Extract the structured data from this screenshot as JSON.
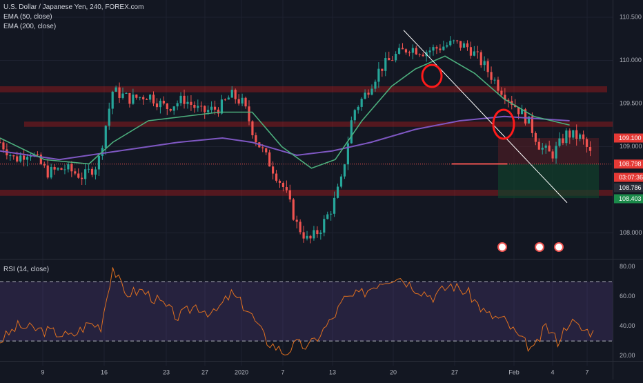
{
  "legend": {
    "symbol": "U.S. Dollar / Japanese Yen, 240, FOREX.com",
    "ema50": "EMA (50, close)",
    "ema200": "EMA (200, close)",
    "rsi": "RSI (14, close)"
  },
  "colors": {
    "background": "#131722",
    "up": "#26a69a",
    "down": "#ef5350",
    "ema50": "#4caf7d",
    "ema200": "#7e57c2",
    "rsi_line": "#e0701f",
    "rsi_band": "#7e57c2",
    "resistance_zone": "#b71c1c",
    "trendline": "#ffffff",
    "circle": "#ff1a1a",
    "axis_text": "#b2b5be"
  },
  "price_axis": {
    "ticks": [
      "110.500",
      "110.000",
      "109.500",
      "109.000",
      "108.000"
    ],
    "badges": [
      {
        "label": "109.100",
        "color": "#e53935"
      },
      {
        "label": "108.798",
        "color": "#e53935"
      },
      {
        "label": "03:07:36",
        "color": "#e53935"
      },
      {
        "label": "108.786",
        "color": "#2a2e39"
      },
      {
        "label": "108.403",
        "color": "#1b8a4a"
      }
    ]
  },
  "rsi_axis": {
    "ticks": [
      "80.00",
      "60.00",
      "40.00",
      "20.00"
    ]
  },
  "time_axis": {
    "labels": [
      "9",
      "16",
      "23",
      "27",
      "2020",
      "7",
      "13",
      "20",
      "27",
      "Feb",
      "4",
      "7"
    ]
  },
  "chart_data": [
    {
      "type": "candlestick",
      "title": "U.S. Dollar / Japanese Yen, 240, FOREX.com",
      "ylim": [
        107.7,
        110.7
      ],
      "x_labels": [
        "9",
        "16",
        "23",
        "27",
        "2020",
        "7",
        "13",
        "20",
        "27",
        "Feb",
        "4",
        "7"
      ],
      "series_close_path": [
        [
          0,
          109.05
        ],
        [
          5,
          108.85
        ],
        [
          10,
          108.95
        ],
        [
          16,
          108.7
        ],
        [
          22,
          108.75
        ],
        [
          28,
          108.65
        ],
        [
          33,
          108.8
        ],
        [
          38,
          109.65
        ],
        [
          44,
          109.55
        ],
        [
          50,
          109.6
        ],
        [
          56,
          109.45
        ],
        [
          62,
          109.55
        ],
        [
          68,
          109.4
        ],
        [
          74,
          109.45
        ],
        [
          78,
          109.6
        ],
        [
          82,
          109.5
        ],
        [
          86,
          109.1
        ],
        [
          91,
          108.8
        ],
        [
          96,
          108.5
        ],
        [
          100,
          108.1
        ],
        [
          104,
          107.9
        ],
        [
          108,
          108.05
        ],
        [
          112,
          108.3
        ],
        [
          115,
          108.6
        ],
        [
          119,
          109.4
        ],
        [
          123,
          109.6
        ],
        [
          128,
          109.9
        ],
        [
          133,
          110.05
        ],
        [
          138,
          110.15
        ],
        [
          143,
          110.1
        ],
        [
          148,
          110.15
        ],
        [
          153,
          110.2
        ],
        [
          158,
          110.15
        ],
        [
          163,
          109.95
        ],
        [
          168,
          109.7
        ],
        [
          173,
          109.5
        ],
        [
          178,
          109.3
        ],
        [
          182,
          109.0
        ],
        [
          186,
          108.9
        ],
        [
          191,
          109.15
        ],
        [
          196,
          109.1
        ],
        [
          200,
          108.85
        ]
      ],
      "ema50": [
        [
          0,
          109.1
        ],
        [
          15,
          108.85
        ],
        [
          30,
          108.8
        ],
        [
          38,
          109.05
        ],
        [
          50,
          109.3
        ],
        [
          62,
          109.35
        ],
        [
          74,
          109.4
        ],
        [
          85,
          109.4
        ],
        [
          95,
          109.0
        ],
        [
          105,
          108.75
        ],
        [
          113,
          108.85
        ],
        [
          122,
          109.3
        ],
        [
          132,
          109.7
        ],
        [
          140,
          109.9
        ],
        [
          150,
          110.05
        ],
        [
          160,
          109.85
        ],
        [
          170,
          109.55
        ],
        [
          180,
          109.35
        ],
        [
          192,
          109.25
        ]
      ],
      "ema200": [
        [
          0,
          108.95
        ],
        [
          20,
          108.85
        ],
        [
          40,
          108.95
        ],
        [
          60,
          109.05
        ],
        [
          75,
          109.1
        ],
        [
          85,
          109.05
        ],
        [
          100,
          108.9
        ],
        [
          112,
          108.95
        ],
        [
          125,
          109.05
        ],
        [
          140,
          109.2
        ],
        [
          155,
          109.3
        ],
        [
          170,
          109.35
        ],
        [
          192,
          109.3
        ]
      ],
      "levels": {
        "resistance_upper": [
          109.63,
          109.7
        ],
        "resistance_mid": [
          109.23,
          109.29
        ],
        "support_lower": [
          108.43,
          108.5
        ],
        "current_price": 108.798,
        "short_stop": 109.1,
        "short_target": 108.403
      }
    },
    {
      "type": "line",
      "title": "RSI (14, close)",
      "ylim": [
        18,
        84
      ],
      "bands": [
        70,
        30
      ],
      "values": [
        [
          0,
          30
        ],
        [
          6,
          40
        ],
        [
          12,
          38
        ],
        [
          18,
          36
        ],
        [
          24,
          33
        ],
        [
          30,
          42
        ],
        [
          34,
          40
        ],
        [
          38,
          80
        ],
        [
          42,
          62
        ],
        [
          48,
          64
        ],
        [
          54,
          56
        ],
        [
          60,
          46
        ],
        [
          66,
          54
        ],
        [
          72,
          48
        ],
        [
          78,
          62
        ],
        [
          84,
          50
        ],
        [
          90,
          30
        ],
        [
          96,
          22
        ],
        [
          100,
          28
        ],
        [
          104,
          26
        ],
        [
          108,
          35
        ],
        [
          112,
          45
        ],
        [
          116,
          58
        ],
        [
          122,
          62
        ],
        [
          128,
          70
        ],
        [
          134,
          74
        ],
        [
          140,
          66
        ],
        [
          146,
          60
        ],
        [
          152,
          68
        ],
        [
          158,
          62
        ],
        [
          164,
          48
        ],
        [
          170,
          44
        ],
        [
          176,
          30
        ],
        [
          180,
          24
        ],
        [
          184,
          40
        ],
        [
          188,
          30
        ],
        [
          192,
          44
        ],
        [
          196,
          38
        ],
        [
          200,
          36
        ]
      ]
    }
  ]
}
